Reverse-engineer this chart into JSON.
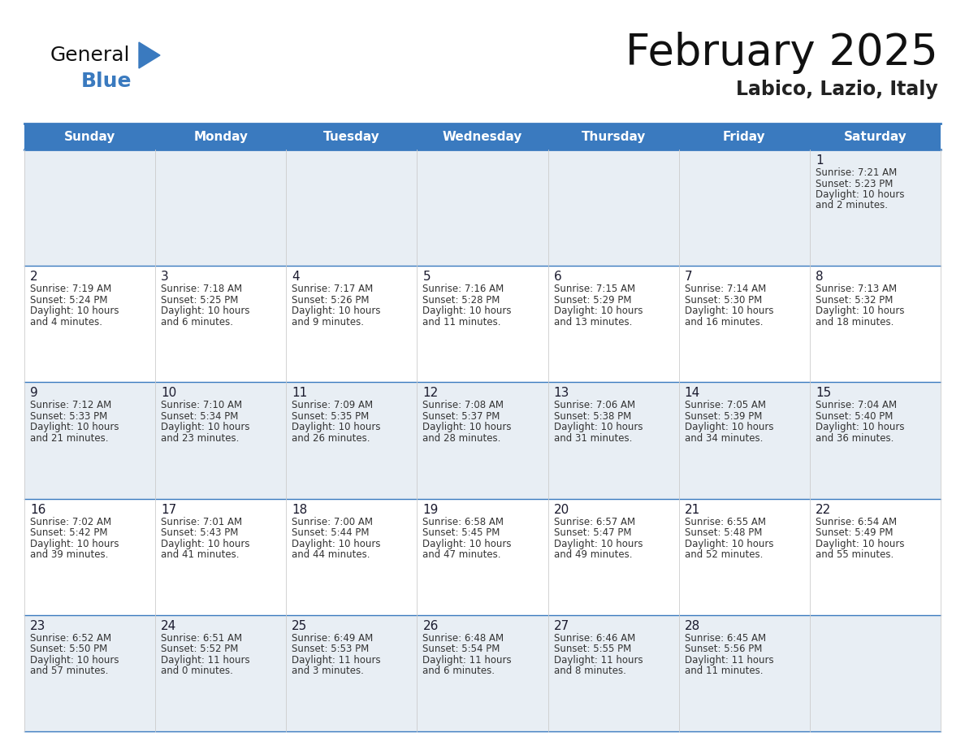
{
  "title": "February 2025",
  "subtitle": "Labico, Lazio, Italy",
  "header_color": "#3a7abf",
  "header_text_color": "#ffffff",
  "day_names": [
    "Sunday",
    "Monday",
    "Tuesday",
    "Wednesday",
    "Thursday",
    "Friday",
    "Saturday"
  ],
  "bg_color": "#ffffff",
  "cell_bg_light": "#e8eef4",
  "cell_bg_white": "#ffffff",
  "date_color": "#1a1a2e",
  "info_color": "#333333",
  "line_color": "#3a7abf",
  "logo_general_color": "#111111",
  "logo_blue_color": "#3a7abf",
  "logo_triangle_color": "#3a7abf",
  "days": [
    {
      "day": 1,
      "col": 6,
      "row": 0,
      "sunrise": "7:21 AM",
      "sunset": "5:23 PM",
      "daylight_h": "10 hours",
      "daylight_m": "2 minutes."
    },
    {
      "day": 2,
      "col": 0,
      "row": 1,
      "sunrise": "7:19 AM",
      "sunset": "5:24 PM",
      "daylight_h": "10 hours",
      "daylight_m": "4 minutes."
    },
    {
      "day": 3,
      "col": 1,
      "row": 1,
      "sunrise": "7:18 AM",
      "sunset": "5:25 PM",
      "daylight_h": "10 hours",
      "daylight_m": "6 minutes."
    },
    {
      "day": 4,
      "col": 2,
      "row": 1,
      "sunrise": "7:17 AM",
      "sunset": "5:26 PM",
      "daylight_h": "10 hours",
      "daylight_m": "9 minutes."
    },
    {
      "day": 5,
      "col": 3,
      "row": 1,
      "sunrise": "7:16 AM",
      "sunset": "5:28 PM",
      "daylight_h": "10 hours",
      "daylight_m": "11 minutes."
    },
    {
      "day": 6,
      "col": 4,
      "row": 1,
      "sunrise": "7:15 AM",
      "sunset": "5:29 PM",
      "daylight_h": "10 hours",
      "daylight_m": "13 minutes."
    },
    {
      "day": 7,
      "col": 5,
      "row": 1,
      "sunrise": "7:14 AM",
      "sunset": "5:30 PM",
      "daylight_h": "10 hours",
      "daylight_m": "16 minutes."
    },
    {
      "day": 8,
      "col": 6,
      "row": 1,
      "sunrise": "7:13 AM",
      "sunset": "5:32 PM",
      "daylight_h": "10 hours",
      "daylight_m": "18 minutes."
    },
    {
      "day": 9,
      "col": 0,
      "row": 2,
      "sunrise": "7:12 AM",
      "sunset": "5:33 PM",
      "daylight_h": "10 hours",
      "daylight_m": "21 minutes."
    },
    {
      "day": 10,
      "col": 1,
      "row": 2,
      "sunrise": "7:10 AM",
      "sunset": "5:34 PM",
      "daylight_h": "10 hours",
      "daylight_m": "23 minutes."
    },
    {
      "day": 11,
      "col": 2,
      "row": 2,
      "sunrise": "7:09 AM",
      "sunset": "5:35 PM",
      "daylight_h": "10 hours",
      "daylight_m": "26 minutes."
    },
    {
      "day": 12,
      "col": 3,
      "row": 2,
      "sunrise": "7:08 AM",
      "sunset": "5:37 PM",
      "daylight_h": "10 hours",
      "daylight_m": "28 minutes."
    },
    {
      "day": 13,
      "col": 4,
      "row": 2,
      "sunrise": "7:06 AM",
      "sunset": "5:38 PM",
      "daylight_h": "10 hours",
      "daylight_m": "31 minutes."
    },
    {
      "day": 14,
      "col": 5,
      "row": 2,
      "sunrise": "7:05 AM",
      "sunset": "5:39 PM",
      "daylight_h": "10 hours",
      "daylight_m": "34 minutes."
    },
    {
      "day": 15,
      "col": 6,
      "row": 2,
      "sunrise": "7:04 AM",
      "sunset": "5:40 PM",
      "daylight_h": "10 hours",
      "daylight_m": "36 minutes."
    },
    {
      "day": 16,
      "col": 0,
      "row": 3,
      "sunrise": "7:02 AM",
      "sunset": "5:42 PM",
      "daylight_h": "10 hours",
      "daylight_m": "39 minutes."
    },
    {
      "day": 17,
      "col": 1,
      "row": 3,
      "sunrise": "7:01 AM",
      "sunset": "5:43 PM",
      "daylight_h": "10 hours",
      "daylight_m": "41 minutes."
    },
    {
      "day": 18,
      "col": 2,
      "row": 3,
      "sunrise": "7:00 AM",
      "sunset": "5:44 PM",
      "daylight_h": "10 hours",
      "daylight_m": "44 minutes."
    },
    {
      "day": 19,
      "col": 3,
      "row": 3,
      "sunrise": "6:58 AM",
      "sunset": "5:45 PM",
      "daylight_h": "10 hours",
      "daylight_m": "47 minutes."
    },
    {
      "day": 20,
      "col": 4,
      "row": 3,
      "sunrise": "6:57 AM",
      "sunset": "5:47 PM",
      "daylight_h": "10 hours",
      "daylight_m": "49 minutes."
    },
    {
      "day": 21,
      "col": 5,
      "row": 3,
      "sunrise": "6:55 AM",
      "sunset": "5:48 PM",
      "daylight_h": "10 hours",
      "daylight_m": "52 minutes."
    },
    {
      "day": 22,
      "col": 6,
      "row": 3,
      "sunrise": "6:54 AM",
      "sunset": "5:49 PM",
      "daylight_h": "10 hours",
      "daylight_m": "55 minutes."
    },
    {
      "day": 23,
      "col": 0,
      "row": 4,
      "sunrise": "6:52 AM",
      "sunset": "5:50 PM",
      "daylight_h": "10 hours",
      "daylight_m": "57 minutes."
    },
    {
      "day": 24,
      "col": 1,
      "row": 4,
      "sunrise": "6:51 AM",
      "sunset": "5:52 PM",
      "daylight_h": "11 hours",
      "daylight_m": "0 minutes."
    },
    {
      "day": 25,
      "col": 2,
      "row": 4,
      "sunrise": "6:49 AM",
      "sunset": "5:53 PM",
      "daylight_h": "11 hours",
      "daylight_m": "3 minutes."
    },
    {
      "day": 26,
      "col": 3,
      "row": 4,
      "sunrise": "6:48 AM",
      "sunset": "5:54 PM",
      "daylight_h": "11 hours",
      "daylight_m": "6 minutes."
    },
    {
      "day": 27,
      "col": 4,
      "row": 4,
      "sunrise": "6:46 AM",
      "sunset": "5:55 PM",
      "daylight_h": "11 hours",
      "daylight_m": "8 minutes."
    },
    {
      "day": 28,
      "col": 5,
      "row": 4,
      "sunrise": "6:45 AM",
      "sunset": "5:56 PM",
      "daylight_h": "11 hours",
      "daylight_m": "11 minutes."
    }
  ],
  "num_rows": 5,
  "num_cols": 7
}
